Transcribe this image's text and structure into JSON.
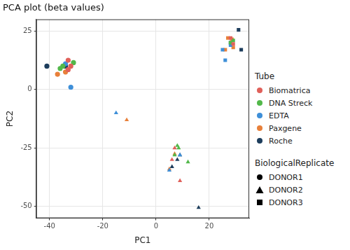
{
  "chart_data": {
    "type": "scatter",
    "title": "PCA plot (beta values)",
    "x_label": "PC1",
    "y_label": "PC2",
    "xlim": [
      -45,
      35
    ],
    "xticks": [
      -40,
      -20,
      0,
      20
    ],
    "ylim": [
      -55,
      30
    ],
    "yticks": [
      -50,
      -25,
      0,
      25
    ],
    "grid": true,
    "legend": "right",
    "color_legend_title": "Tube",
    "shape_legend_title": "BiologicalReplicate",
    "shape_legend": [
      {
        "name": "DONOR1",
        "marker": "circle"
      },
      {
        "name": "DONOR2",
        "marker": "triangle"
      },
      {
        "name": "DONOR3",
        "marker": "square"
      }
    ],
    "series": [
      {
        "name": "Biomatrica",
        "color": "#e0605a",
        "x": [
          -33,
          -32,
          -33,
          7,
          9,
          6,
          28,
          29
        ],
        "values": [
          12.5,
          10,
          8.5,
          -25,
          -39,
          -30,
          22,
          19.5
        ],
        "donor": [
          "DONOR1",
          "DONOR1",
          "DONOR1",
          "DONOR2",
          "DONOR2",
          "DONOR2",
          "DONOR3",
          "DONOR3"
        ]
      },
      {
        "name": "DNA Streck",
        "color": "#52b84a",
        "x": [
          -35,
          -31,
          -36,
          8,
          8.5,
          12,
          7,
          28,
          29
        ],
        "values": [
          10,
          11.5,
          9,
          -24,
          -25,
          -31,
          -28,
          20,
          21
        ],
        "donor": [
          "DONOR1",
          "DONOR1",
          "DONOR1",
          "DONOR2",
          "DONOR2",
          "DONOR2",
          "DONOR2",
          "DONOR3",
          "DONOR3"
        ]
      },
      {
        "name": "EDTA",
        "color": "#3e8fd8",
        "x": [
          -34,
          -32,
          -15,
          5,
          9,
          26,
          28,
          25
        ],
        "values": [
          11,
          1,
          -10,
          -34.5,
          -28,
          12.5,
          19,
          17
        ],
        "donor": [
          "DONOR1",
          "DONOR1",
          "DONOR2",
          "DONOR2",
          "DONOR2",
          "DONOR3",
          "DONOR3",
          "DONOR3"
        ]
      },
      {
        "name": "Paxgene",
        "color": "#e8803a",
        "x": [
          -37,
          -34,
          -11,
          7,
          5,
          27,
          26,
          28.5,
          29
        ],
        "values": [
          6.5,
          7.5,
          -13,
          -27.5,
          -34,
          22,
          17,
          21.5,
          18
        ],
        "donor": [
          "DONOR1",
          "DONOR1",
          "DONOR2",
          "DONOR2",
          "DONOR2",
          "DONOR3",
          "DONOR3",
          "DONOR3",
          "DONOR3"
        ]
      },
      {
        "name": "Roche",
        "color": "#1d3d5c",
        "x": [
          -41,
          -34,
          9,
          8,
          16,
          6,
          31,
          32,
          28
        ],
        "values": [
          10,
          10,
          -28,
          -30,
          -50.5,
          -33,
          25.5,
          17,
          20
        ],
        "donor": [
          "DONOR1",
          "DONOR1",
          "DONOR2",
          "DONOR2",
          "DONOR2",
          "DONOR2",
          "DONOR3",
          "DONOR3",
          "DONOR3"
        ]
      }
    ]
  }
}
